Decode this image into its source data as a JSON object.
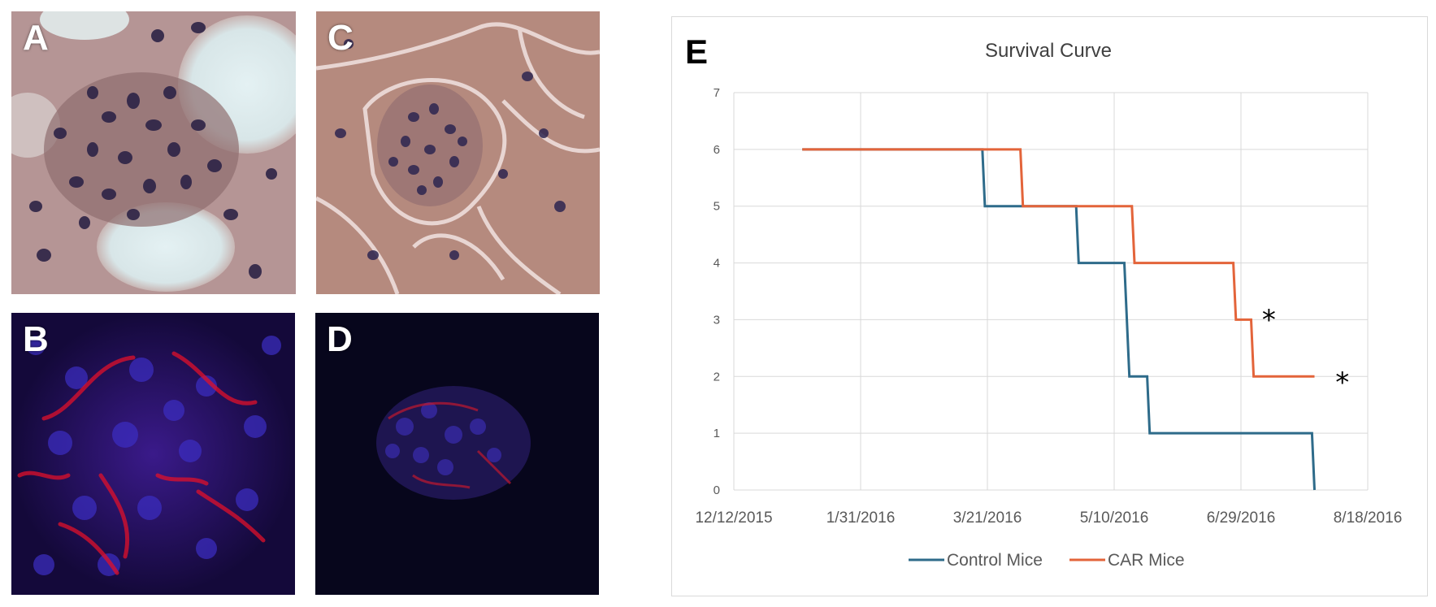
{
  "panels": {
    "a": {
      "letter": "A",
      "stain": "H&E histology"
    },
    "b": {
      "letter": "B",
      "stain": "fluorescence red/blue"
    },
    "c": {
      "letter": "C",
      "stain": "H&E histology"
    },
    "d": {
      "letter": "D",
      "stain": "fluorescence red/blue"
    }
  },
  "chart_label": "E",
  "chart_data": {
    "type": "line",
    "step": true,
    "title": "Survival Curve",
    "xlabel": "",
    "ylabel": "",
    "x_ticks": [
      "12/12/2015",
      "1/31/2016",
      "3/21/2016",
      "5/10/2016",
      "6/29/2016",
      "8/18/2016"
    ],
    "xlim": [
      "2015-12-12",
      "2016-08-18"
    ],
    "y_ticks": [
      0,
      1,
      2,
      3,
      4,
      5,
      6,
      7
    ],
    "ylim": [
      0,
      7
    ],
    "grid": true,
    "legend_position": "bottom",
    "series": [
      {
        "name": "Control Mice",
        "color": "#2e6b8a",
        "points": [
          [
            "2016-01-08",
            6
          ],
          [
            "2016-03-19",
            6
          ],
          [
            "2016-03-20",
            5
          ],
          [
            "2016-04-25",
            5
          ],
          [
            "2016-04-26",
            4
          ],
          [
            "2016-05-14",
            4
          ],
          [
            "2016-05-16",
            2
          ],
          [
            "2016-05-23",
            2
          ],
          [
            "2016-05-24",
            1
          ],
          [
            "2016-07-27",
            1
          ],
          [
            "2016-07-28",
            0
          ]
        ]
      },
      {
        "name": "CAR Mice",
        "color": "#e3643a",
        "points": [
          [
            "2016-01-08",
            6
          ],
          [
            "2016-04-03",
            6
          ],
          [
            "2016-04-04",
            5
          ],
          [
            "2016-05-17",
            5
          ],
          [
            "2016-05-18",
            4
          ],
          [
            "2016-06-26",
            4
          ],
          [
            "2016-06-27",
            3
          ],
          [
            "2016-07-03",
            3
          ],
          [
            "2016-07-04",
            2
          ],
          [
            "2016-07-28",
            2
          ]
        ]
      }
    ],
    "annotations": [
      {
        "text": "*",
        "x": "2016-07-10",
        "y": 3.15
      },
      {
        "text": "*",
        "x": "2016-08-08",
        "y": 2.05
      }
    ]
  }
}
